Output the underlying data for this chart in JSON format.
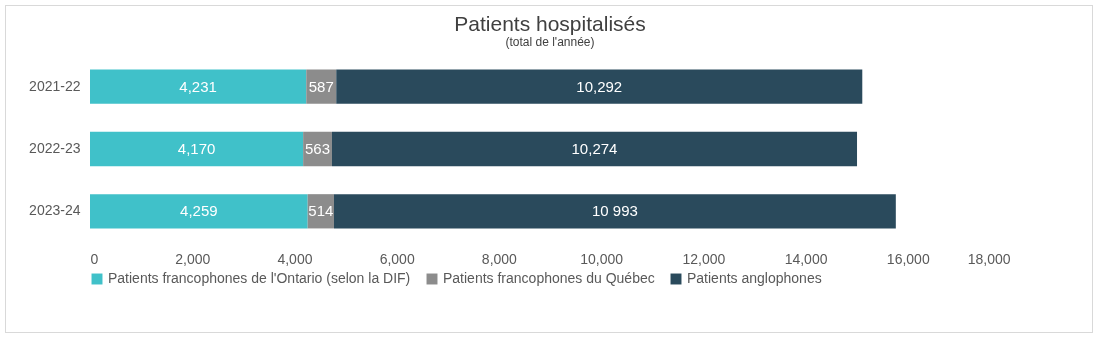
{
  "chart_data": {
    "type": "bar",
    "orientation": "horizontal",
    "stacked": true,
    "title": "Patients hospitalisés",
    "subtitle": "(total de l'année)",
    "categories": [
      "2021-22",
      "2022-23",
      "2023-24"
    ],
    "series": [
      {
        "name": "Patients francophones de l'Ontario (selon la DIF)",
        "color": "#40c1c9",
        "values": [
          4231,
          4170,
          4259
        ],
        "value_labels": [
          "4,231",
          "4,170",
          "4,259"
        ]
      },
      {
        "name": "Patients francophones du Québec",
        "color": "#8c8c8c",
        "values": [
          587,
          563,
          514
        ],
        "value_labels": [
          "587",
          "563",
          "514"
        ]
      },
      {
        "name": "Patients anglophones",
        "color": "#2a4a5c",
        "values": [
          10292,
          10274,
          10993
        ],
        "value_labels": [
          "10,292",
          "10,274",
          "10 993"
        ]
      }
    ],
    "xlim": [
      0,
      18000
    ],
    "xticks": [
      0,
      {
        "value": 2000,
        "label": "2,000"
      },
      {
        "value": 4000,
        "label": "4,000"
      },
      {
        "value": 6000,
        "label": "6,000"
      },
      {
        "value": 8000,
        "label": "8,000"
      },
      {
        "value": 10000,
        "label": "10,000"
      },
      {
        "value": 12000,
        "label": "12,000"
      },
      {
        "value": 14000,
        "label": "14,000"
      },
      {
        "value": 16000,
        "label": "16,000"
      },
      {
        "value": 18000,
        "label": "18,000"
      }
    ],
    "grid": false,
    "legend": "bottom"
  }
}
